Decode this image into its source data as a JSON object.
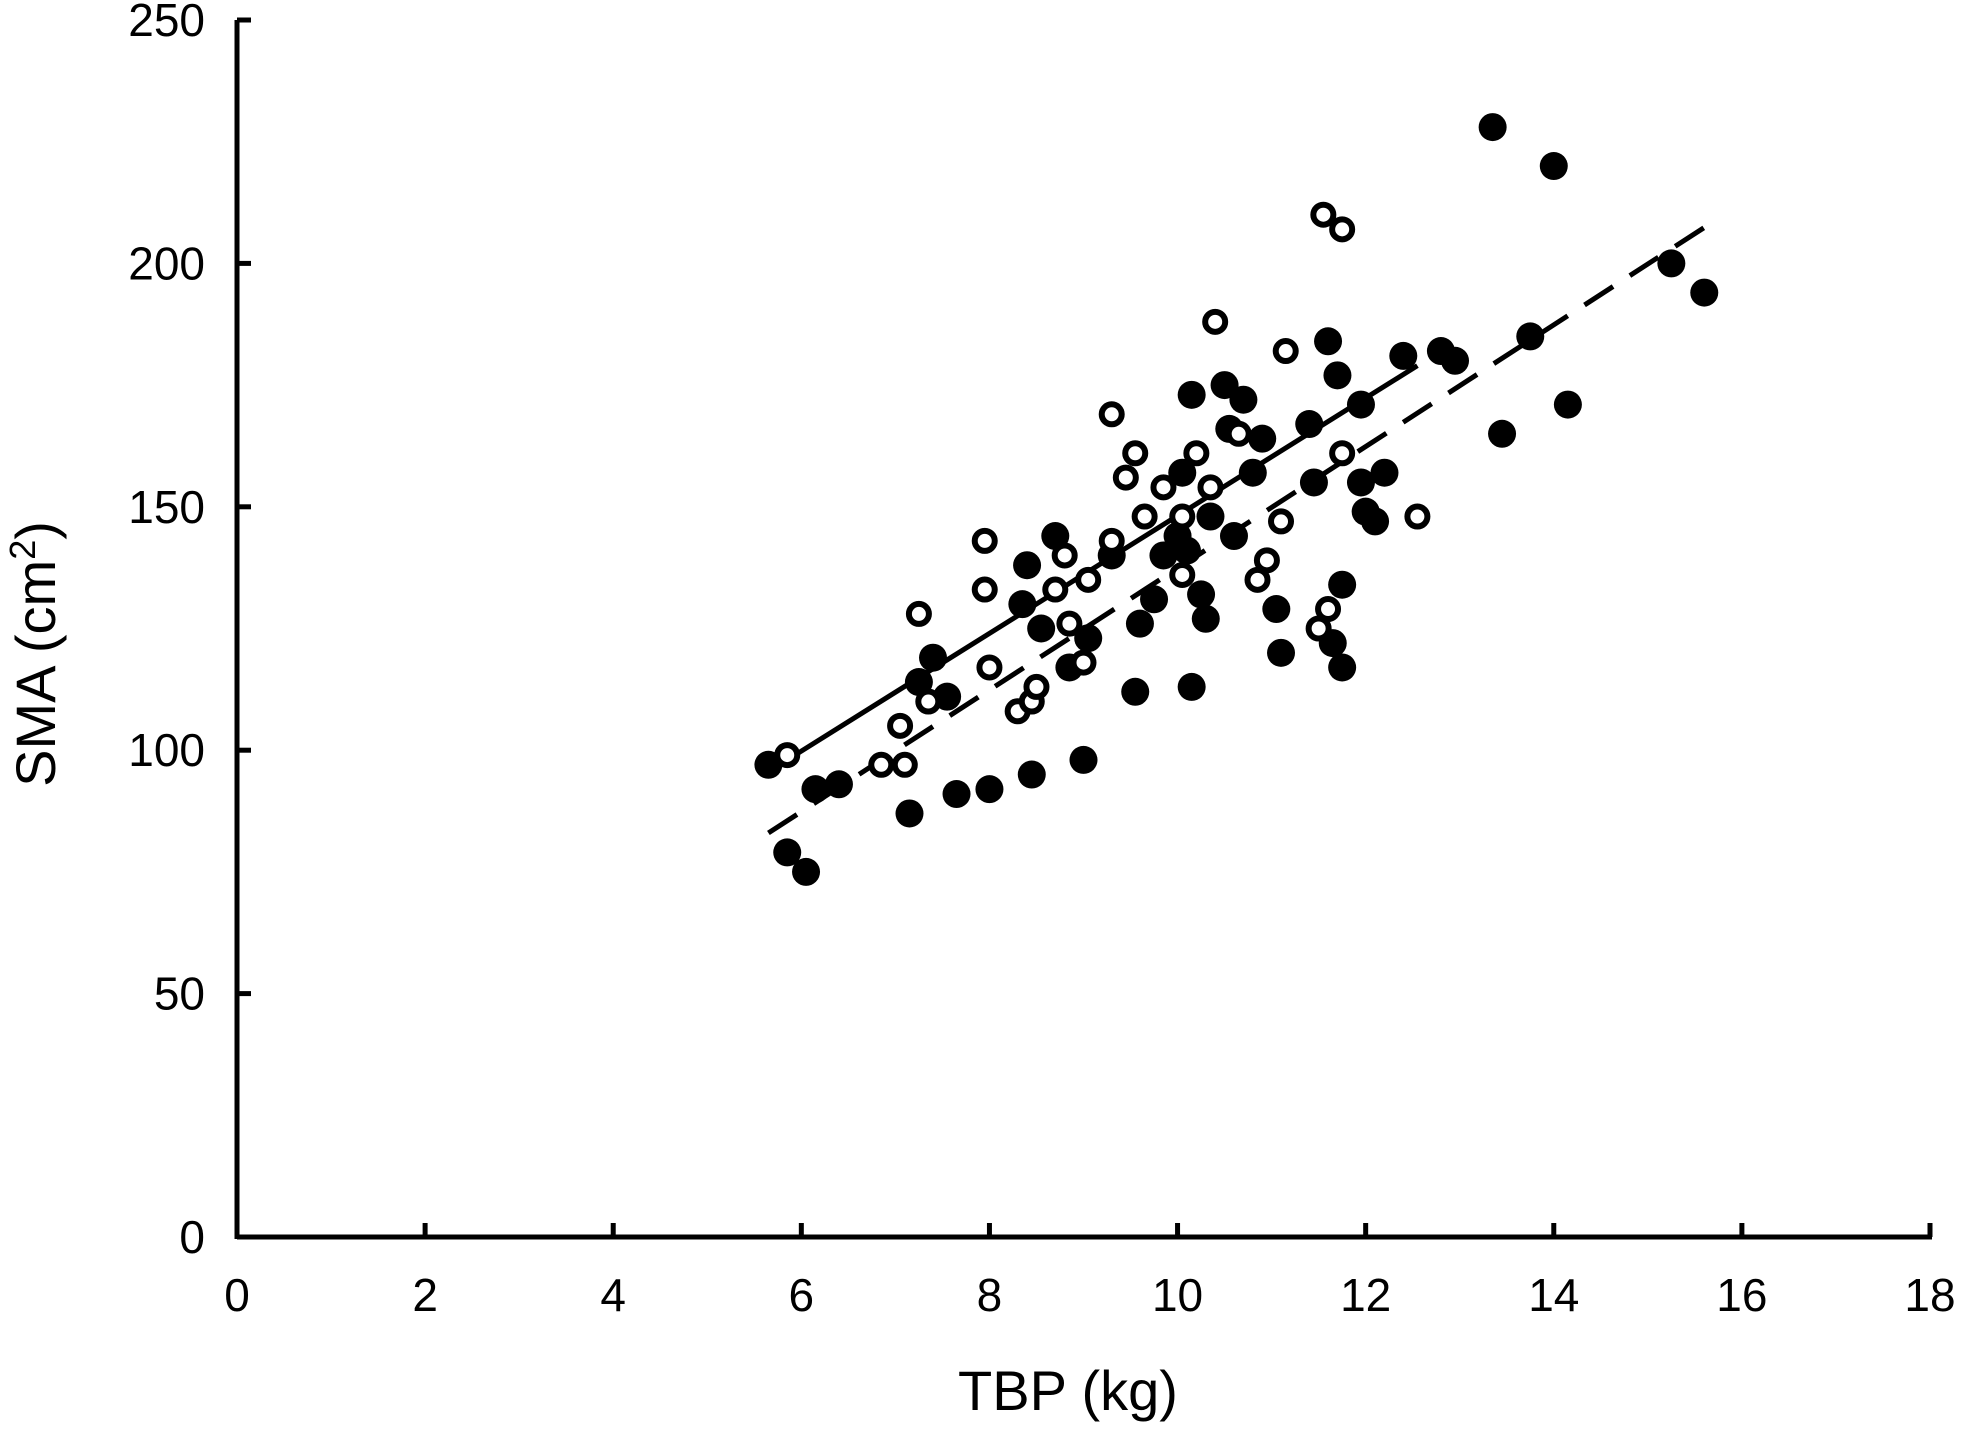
{
  "chart_data": {
    "type": "scatter",
    "xlabel": "TBP (kg)",
    "ylabel_main": "SMA (cm",
    "ylabel_sup": "2",
    "ylabel_close": ")",
    "xlim": [
      0,
      18
    ],
    "ylim": [
      0,
      250
    ],
    "xticks": [
      0,
      2,
      4,
      6,
      8,
      10,
      12,
      14,
      16,
      18
    ],
    "yticks": [
      0,
      50,
      100,
      150,
      200,
      250
    ],
    "x_tick_labels": [
      "0",
      "2",
      "4",
      "6",
      "8",
      "10",
      "12",
      "14",
      "16",
      "18"
    ],
    "y_tick_labels": [
      "0",
      "50",
      "100",
      "150",
      "200",
      "250"
    ],
    "grid": false,
    "series": [
      {
        "marker": "filled-circle",
        "color": "#000000",
        "points": [
          [
            5.65,
            97
          ],
          [
            5.85,
            79
          ],
          [
            6.05,
            75
          ],
          [
            6.15,
            92
          ],
          [
            6.4,
            93
          ],
          [
            7.15,
            87
          ],
          [
            7.25,
            114
          ],
          [
            7.4,
            119
          ],
          [
            7.55,
            111
          ],
          [
            7.65,
            91
          ],
          [
            8.0,
            92
          ],
          [
            8.35,
            130
          ],
          [
            8.4,
            138
          ],
          [
            8.45,
            95
          ],
          [
            8.55,
            125
          ],
          [
            8.7,
            144
          ],
          [
            8.85,
            117
          ],
          [
            9.0,
            98
          ],
          [
            9.05,
            123
          ],
          [
            9.3,
            140
          ],
          [
            9.55,
            112
          ],
          [
            9.6,
            126
          ],
          [
            9.75,
            131
          ],
          [
            9.85,
            140
          ],
          [
            10.0,
            144
          ],
          [
            10.05,
            157
          ],
          [
            10.1,
            141
          ],
          [
            10.15,
            173
          ],
          [
            10.15,
            113
          ],
          [
            10.25,
            132
          ],
          [
            10.3,
            127
          ],
          [
            10.35,
            148
          ],
          [
            10.5,
            175
          ],
          [
            10.55,
            166
          ],
          [
            10.6,
            144
          ],
          [
            10.7,
            172
          ],
          [
            10.8,
            157
          ],
          [
            10.9,
            164
          ],
          [
            11.05,
            129
          ],
          [
            11.1,
            120
          ],
          [
            11.4,
            167
          ],
          [
            11.45,
            155
          ],
          [
            11.6,
            184
          ],
          [
            11.65,
            122
          ],
          [
            11.7,
            177
          ],
          [
            11.75,
            117
          ],
          [
            11.75,
            134
          ],
          [
            11.95,
            171
          ],
          [
            11.95,
            155
          ],
          [
            12.0,
            149
          ],
          [
            12.1,
            147
          ],
          [
            12.2,
            157
          ],
          [
            12.4,
            181
          ],
          [
            12.8,
            182
          ],
          [
            12.95,
            180
          ],
          [
            13.35,
            228
          ],
          [
            13.45,
            165
          ],
          [
            13.75,
            185
          ],
          [
            14.0,
            220
          ],
          [
            14.15,
            171
          ],
          [
            15.25,
            200
          ],
          [
            15.6,
            194
          ]
        ]
      },
      {
        "marker": "open-circle",
        "color": "#000000",
        "points": [
          [
            5.85,
            99
          ],
          [
            6.85,
            97
          ],
          [
            7.05,
            105
          ],
          [
            7.1,
            97
          ],
          [
            7.25,
            128
          ],
          [
            7.35,
            110
          ],
          [
            7.95,
            143
          ],
          [
            7.95,
            133
          ],
          [
            8.0,
            117
          ],
          [
            8.3,
            108
          ],
          [
            8.45,
            110
          ],
          [
            8.5,
            113
          ],
          [
            8.7,
            133
          ],
          [
            8.8,
            140
          ],
          [
            8.85,
            126
          ],
          [
            9.0,
            118
          ],
          [
            9.05,
            135
          ],
          [
            9.3,
            143
          ],
          [
            9.3,
            169
          ],
          [
            9.45,
            156
          ],
          [
            9.55,
            161
          ],
          [
            9.65,
            148
          ],
          [
            9.85,
            154
          ],
          [
            10.05,
            148
          ],
          [
            10.05,
            136
          ],
          [
            10.2,
            161
          ],
          [
            10.35,
            154
          ],
          [
            10.4,
            188
          ],
          [
            10.65,
            165
          ],
          [
            10.85,
            135
          ],
          [
            10.95,
            139
          ],
          [
            11.1,
            147
          ],
          [
            11.15,
            182
          ],
          [
            11.5,
            125
          ],
          [
            11.55,
            210
          ],
          [
            11.6,
            129
          ],
          [
            11.75,
            207
          ],
          [
            11.75,
            161
          ],
          [
            12.55,
            148
          ]
        ]
      }
    ],
    "fit_lines": [
      {
        "style": "solid",
        "x": [
          5.85,
          12.55
        ],
        "y": [
          98,
          179
        ]
      },
      {
        "style": "dashed",
        "x": [
          5.65,
          15.65
        ],
        "y": [
          83,
          208
        ]
      }
    ]
  }
}
